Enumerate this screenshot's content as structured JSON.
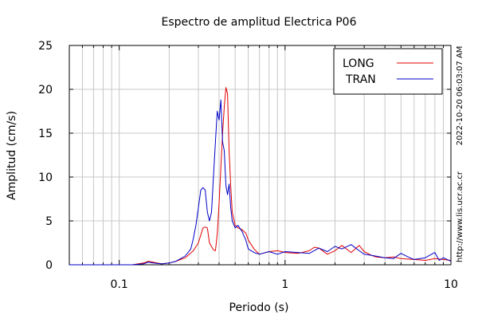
{
  "chart_data": {
    "type": "line",
    "title": "Espectro de amplitud Electrica P06",
    "xlabel": "Periodo (s)",
    "ylabel": "Amplitud (cm/s)",
    "xscale": "log",
    "xlim": [
      0.05,
      10
    ],
    "ylim": [
      0,
      25
    ],
    "x_tick_labels": [
      "0.1",
      "1",
      "10"
    ],
    "x_tick_values": [
      0.1,
      1,
      10
    ],
    "y_tick_labels": [
      "0",
      "5",
      "10",
      "15",
      "20",
      "25"
    ],
    "y_tick_values": [
      0,
      5,
      10,
      15,
      20,
      25
    ],
    "grid": true,
    "legend_position": "top-right",
    "side_text_timestamp": "2022-10-20 06:03:07 AM",
    "side_text_url": "http://www.lis.ucr.ac.cr",
    "series": [
      {
        "name": "LONG",
        "color": "#e00000",
        "x": [
          0.05,
          0.08,
          0.12,
          0.14,
          0.15,
          0.16,
          0.18,
          0.2,
          0.22,
          0.25,
          0.28,
          0.3,
          0.32,
          0.33,
          0.34,
          0.35,
          0.37,
          0.38,
          0.39,
          0.4,
          0.41,
          0.42,
          0.43,
          0.44,
          0.45,
          0.46,
          0.47,
          0.48,
          0.5,
          0.52,
          0.55,
          0.58,
          0.6,
          0.65,
          0.7,
          0.8,
          0.9,
          1.0,
          1.2,
          1.4,
          1.5,
          1.6,
          1.8,
          2.0,
          2.2,
          2.5,
          2.8,
          3.0,
          3.3,
          3.5,
          4.0,
          4.5,
          5.0,
          6.0,
          7.0,
          8.0,
          9.0,
          10.0
        ],
        "y": [
          0,
          0,
          0,
          0.2,
          0.4,
          0.3,
          0.1,
          0.2,
          0.4,
          0.8,
          1.6,
          2.5,
          4.2,
          4.3,
          4.2,
          2.5,
          1.7,
          1.6,
          3.5,
          7.0,
          11.0,
          15.0,
          18.0,
          20.2,
          19.5,
          13.0,
          9.0,
          6.0,
          4.5,
          4.2,
          4.0,
          3.6,
          2.8,
          1.8,
          1.2,
          1.5,
          1.6,
          1.4,
          1.3,
          1.6,
          2.0,
          1.9,
          1.2,
          1.6,
          2.2,
          1.4,
          2.2,
          1.5,
          1.1,
          0.9,
          0.8,
          0.9,
          0.7,
          0.6,
          0.5,
          0.7,
          0.6,
          0.5
        ]
      },
      {
        "name": "TRAN",
        "color": "#0000c8",
        "x": [
          0.05,
          0.08,
          0.12,
          0.14,
          0.15,
          0.16,
          0.18,
          0.2,
          0.22,
          0.25,
          0.27,
          0.28,
          0.29,
          0.3,
          0.31,
          0.32,
          0.33,
          0.34,
          0.35,
          0.36,
          0.37,
          0.38,
          0.39,
          0.4,
          0.41,
          0.42,
          0.43,
          0.44,
          0.45,
          0.46,
          0.47,
          0.48,
          0.5,
          0.52,
          0.55,
          0.58,
          0.6,
          0.65,
          0.7,
          0.8,
          0.9,
          1.0,
          1.2,
          1.4,
          1.6,
          1.8,
          2.0,
          2.2,
          2.5,
          2.8,
          3.0,
          3.5,
          4.0,
          4.5,
          5.0,
          5.5,
          6.0,
          7.0,
          8.0,
          8.5,
          9.0,
          10.0
        ],
        "y": [
          0,
          0,
          0,
          0.1,
          0.3,
          0.2,
          0.1,
          0.2,
          0.4,
          1.0,
          1.8,
          3.0,
          4.5,
          6.5,
          8.5,
          8.8,
          8.5,
          6.0,
          5.0,
          6.0,
          10.0,
          14.0,
          17.5,
          16.5,
          18.8,
          14.0,
          13.0,
          9.0,
          8.0,
          9.2,
          6.5,
          5.0,
          4.2,
          4.5,
          3.8,
          2.8,
          1.8,
          1.4,
          1.2,
          1.5,
          1.2,
          1.5,
          1.4,
          1.3,
          1.9,
          1.5,
          2.1,
          1.8,
          2.3,
          1.6,
          1.2,
          1.0,
          0.8,
          0.7,
          1.3,
          0.9,
          0.6,
          0.8,
          1.4,
          0.5,
          0.8,
          0.4
        ]
      }
    ]
  }
}
